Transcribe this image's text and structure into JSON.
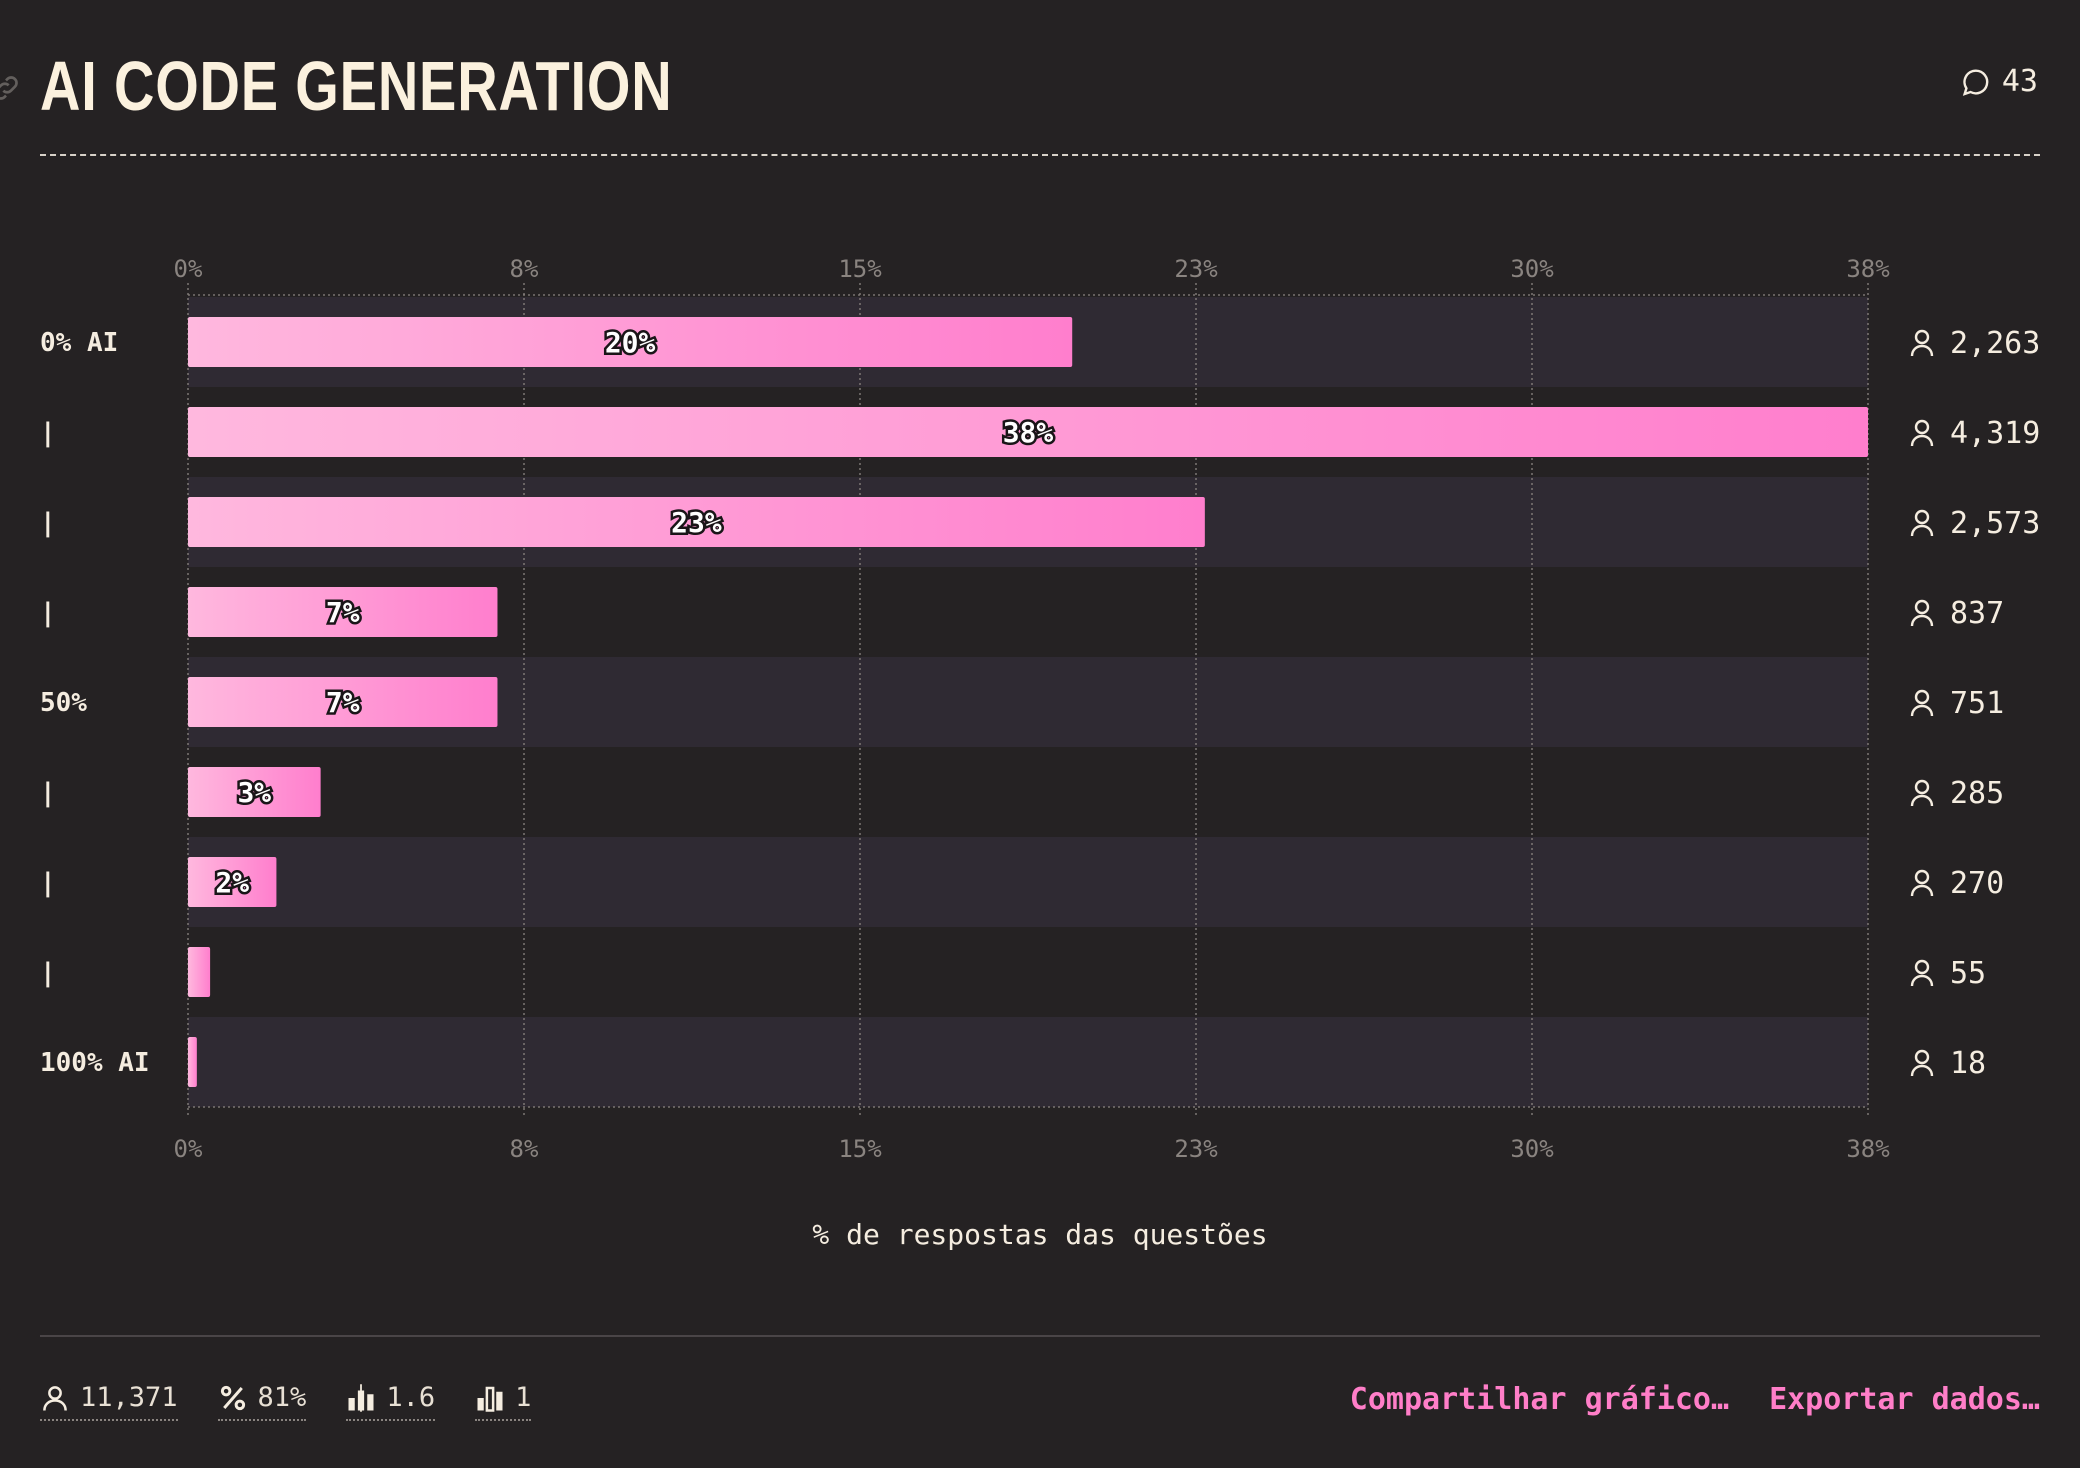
{
  "header": {
    "title": "AI CODE GENERATION",
    "comment_count": "43"
  },
  "chart_data": {
    "type": "bar",
    "orientation": "horizontal",
    "categories": [
      "0% AI",
      "|",
      "|",
      "|",
      "50%",
      "|",
      "|",
      "|",
      "100% AI"
    ],
    "values": [
      20,
      38,
      23,
      7,
      7,
      3,
      2,
      0.5,
      0.2
    ],
    "data_labels": [
      "20%",
      "38%",
      "23%",
      "7%",
      "7%",
      "3%",
      "2%",
      "",
      ""
    ],
    "respondents": [
      "2,263",
      "4,319",
      "2,573",
      "837",
      "751",
      "285",
      "270",
      "55",
      "18"
    ],
    "x_ticks": [
      "0%",
      "8%",
      "15%",
      "23%",
      "30%",
      "38%"
    ],
    "xlim": [
      0,
      38
    ],
    "xlabel": "% de respostas das questões",
    "grid": true,
    "colors": {
      "bar_start": "#ffb8de",
      "bar_end": "#ff7ecd",
      "band": "#2f2a33"
    }
  },
  "footer": {
    "stats": [
      {
        "icon": "person-icon",
        "value": "11,371"
      },
      {
        "icon": "percent-icon",
        "value": "81%"
      },
      {
        "icon": "candlestick-icon",
        "value": "1.6"
      },
      {
        "icon": "bar-chart-icon",
        "value": "1"
      }
    ],
    "share_label": "Compartilhar gráfico…",
    "export_label": "Exportar dados…"
  }
}
